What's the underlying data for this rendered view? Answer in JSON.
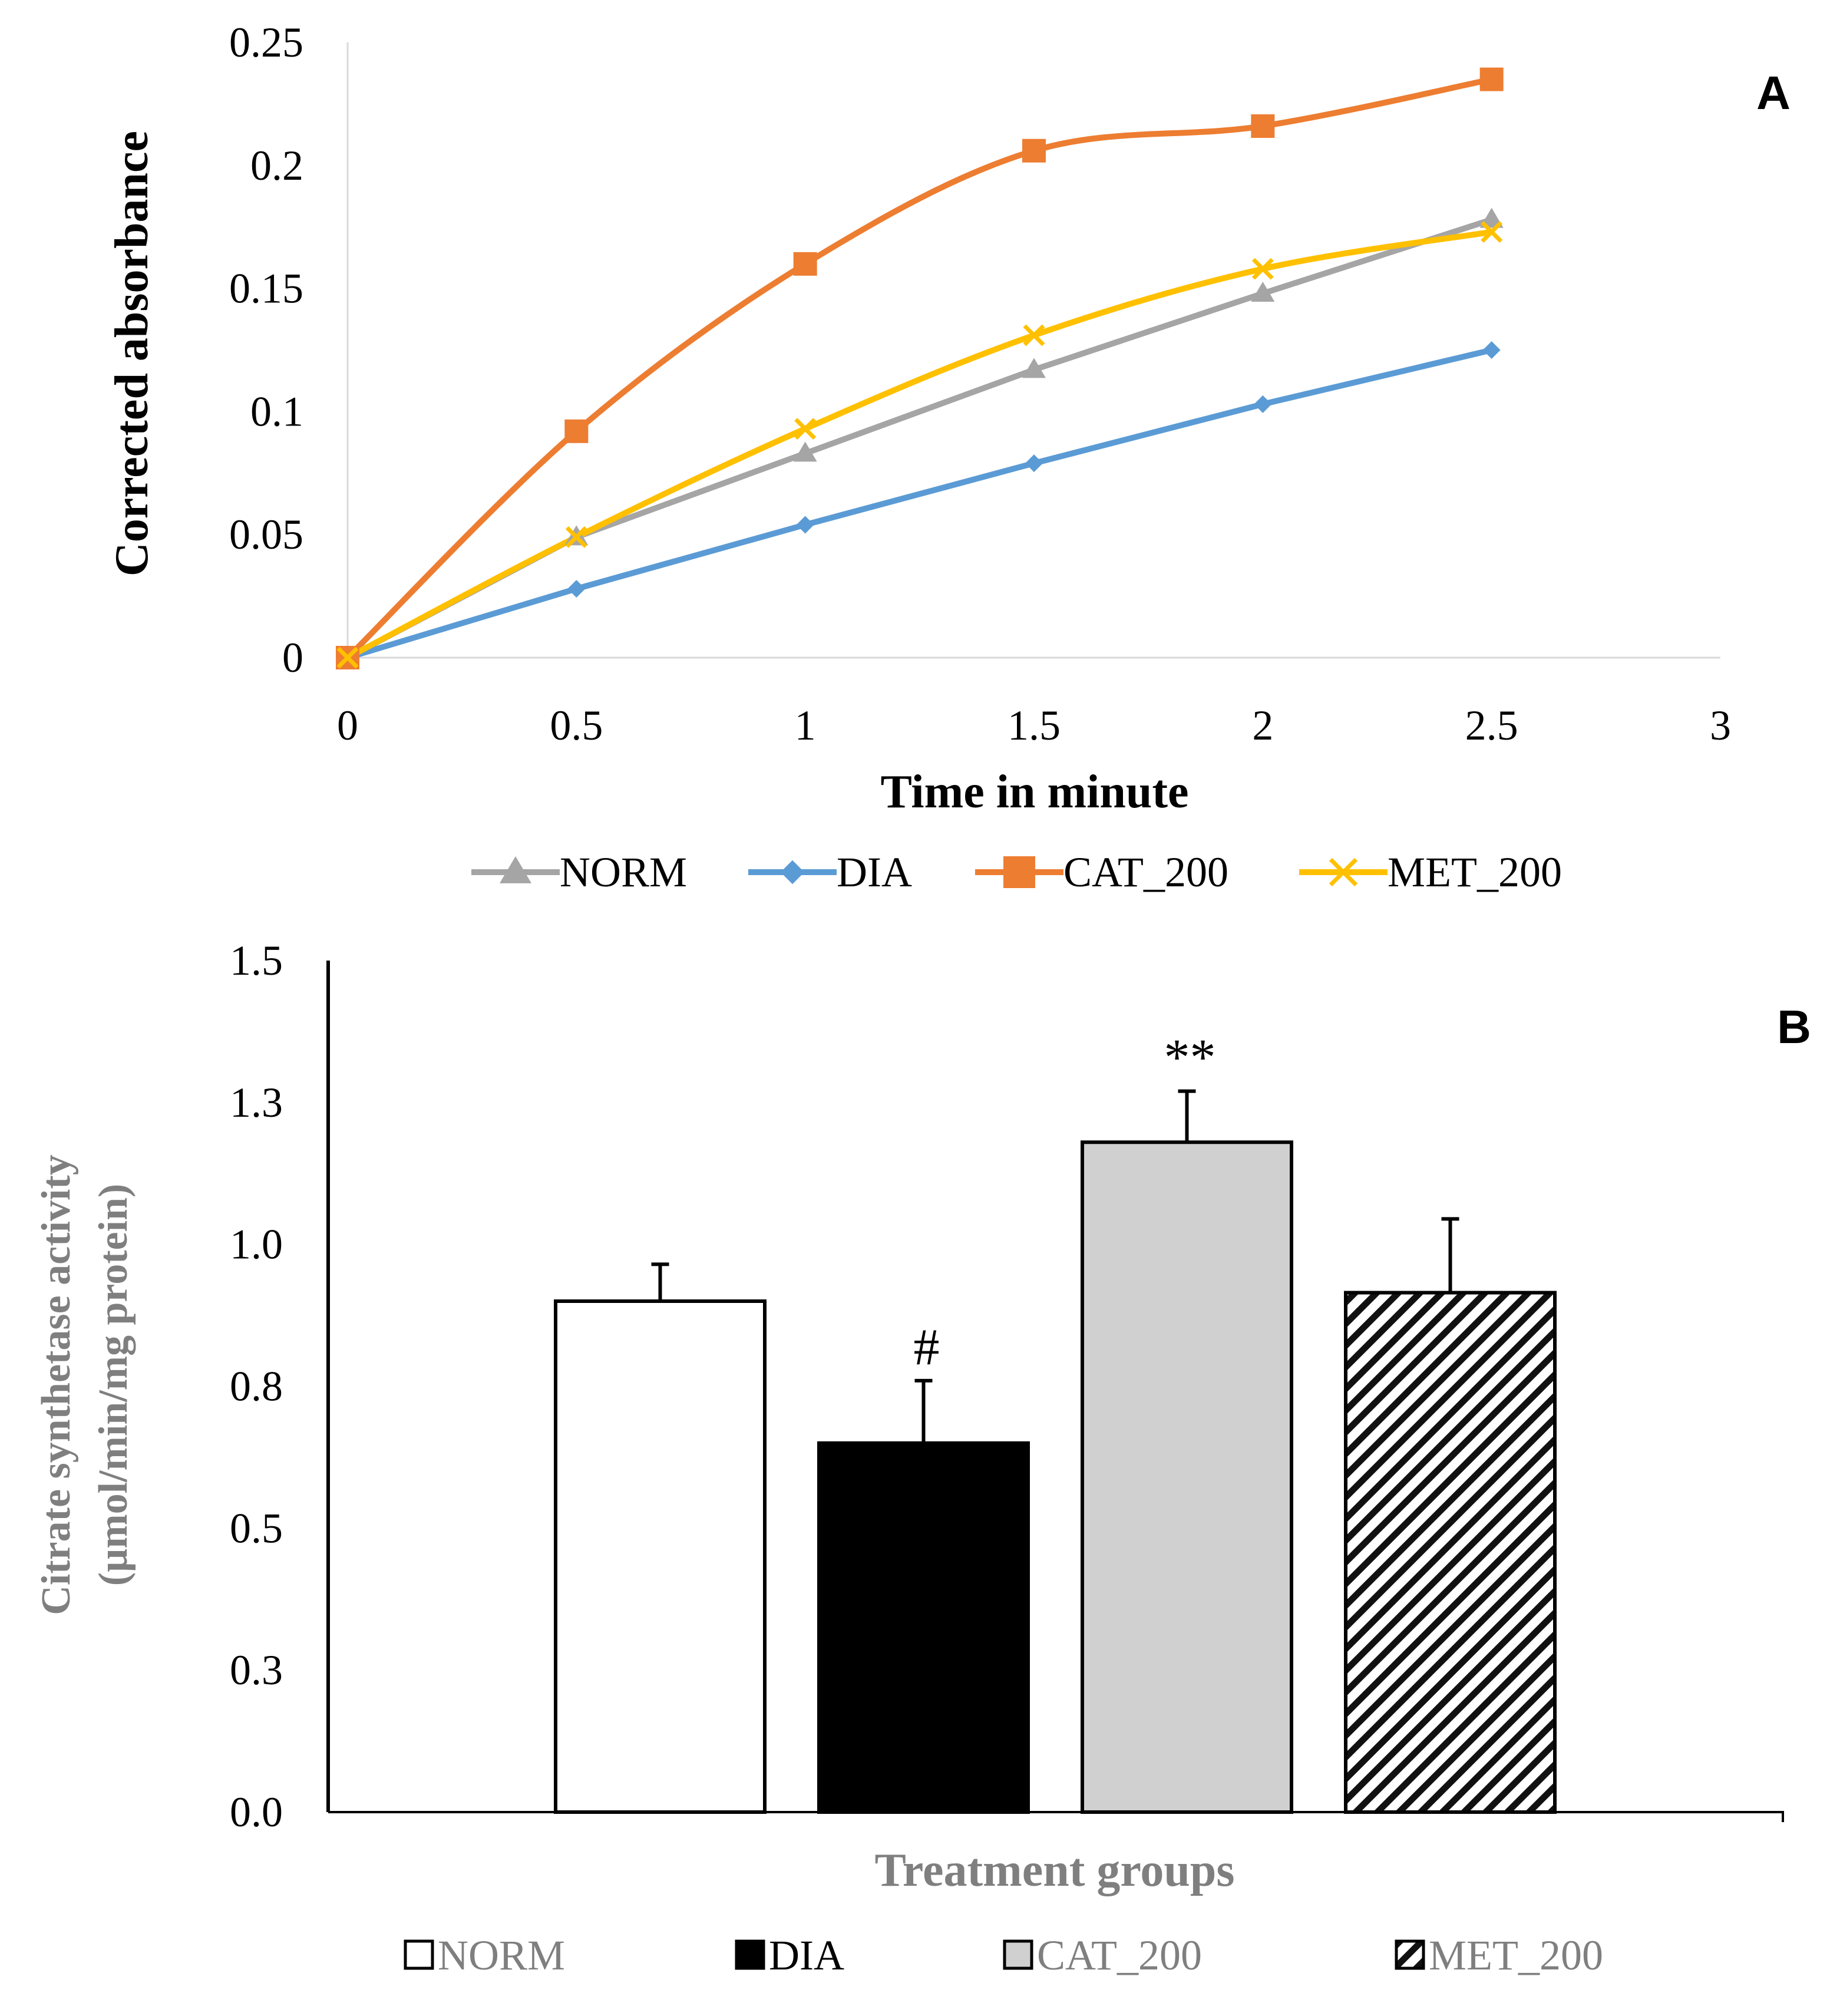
{
  "chart_data": [
    {
      "panel": "A",
      "type": "line",
      "title": "",
      "xlabel": "Time in minute",
      "ylabel": "Corrected absorbance",
      "xlim": [
        0,
        3
      ],
      "ylim": [
        0,
        0.25
      ],
      "x_ticks": [
        "0",
        "0.5",
        "1",
        "1.5",
        "2",
        "2.5",
        "3"
      ],
      "y_ticks": [
        "0",
        "0.05",
        "0.1",
        "0.15",
        "0.2",
        "0.25"
      ],
      "grid": false,
      "legend_position": "bottom",
      "x": [
        0,
        0.5,
        1,
        1.5,
        2,
        2.5
      ],
      "series": [
        {
          "name": "NORM",
          "color": "#a5a5a5",
          "marker": "triangle",
          "smooth": false,
          "values": [
            0,
            0.049,
            0.083,
            0.117,
            0.148,
            0.178
          ]
        },
        {
          "name": "DIA",
          "color": "#5b9bd5",
          "marker": "diamond",
          "smooth": false,
          "values": [
            0,
            0.028,
            0.054,
            0.079,
            0.103,
            0.125
          ]
        },
        {
          "name": "CAT_200",
          "color": "#ed7d31",
          "marker": "square",
          "smooth": true,
          "values": [
            0,
            0.092,
            0.16,
            0.206,
            0.216,
            0.235
          ]
        },
        {
          "name": "MET_200",
          "color": "#ffc000",
          "marker": "x",
          "smooth": true,
          "values": [
            0,
            0.049,
            0.093,
            0.131,
            0.158,
            0.173
          ]
        }
      ]
    },
    {
      "panel": "B",
      "type": "bar",
      "title": "",
      "xlabel": "Treatment groups",
      "ylabel": [
        "Citrate synthetase activity",
        "(µmol/min/mg protein)"
      ],
      "ylim": [
        0,
        1.5
      ],
      "y_ticks": [
        "0.0",
        "0.3",
        "0.5",
        "0.8",
        "1.0",
        "1.3",
        "1.5"
      ],
      "grid": false,
      "legend_position": "bottom",
      "categories": [
        "NORM",
        "DIA",
        "CAT_200",
        "MET_200"
      ],
      "values": [
        0.9,
        0.65,
        1.18,
        0.915
      ],
      "errors": [
        0.065,
        0.11,
        0.09,
        0.13
      ],
      "fills": [
        "white",
        "black",
        "gray",
        "hatched"
      ],
      "annotations": [
        "",
        "#",
        "**",
        ""
      ]
    }
  ]
}
